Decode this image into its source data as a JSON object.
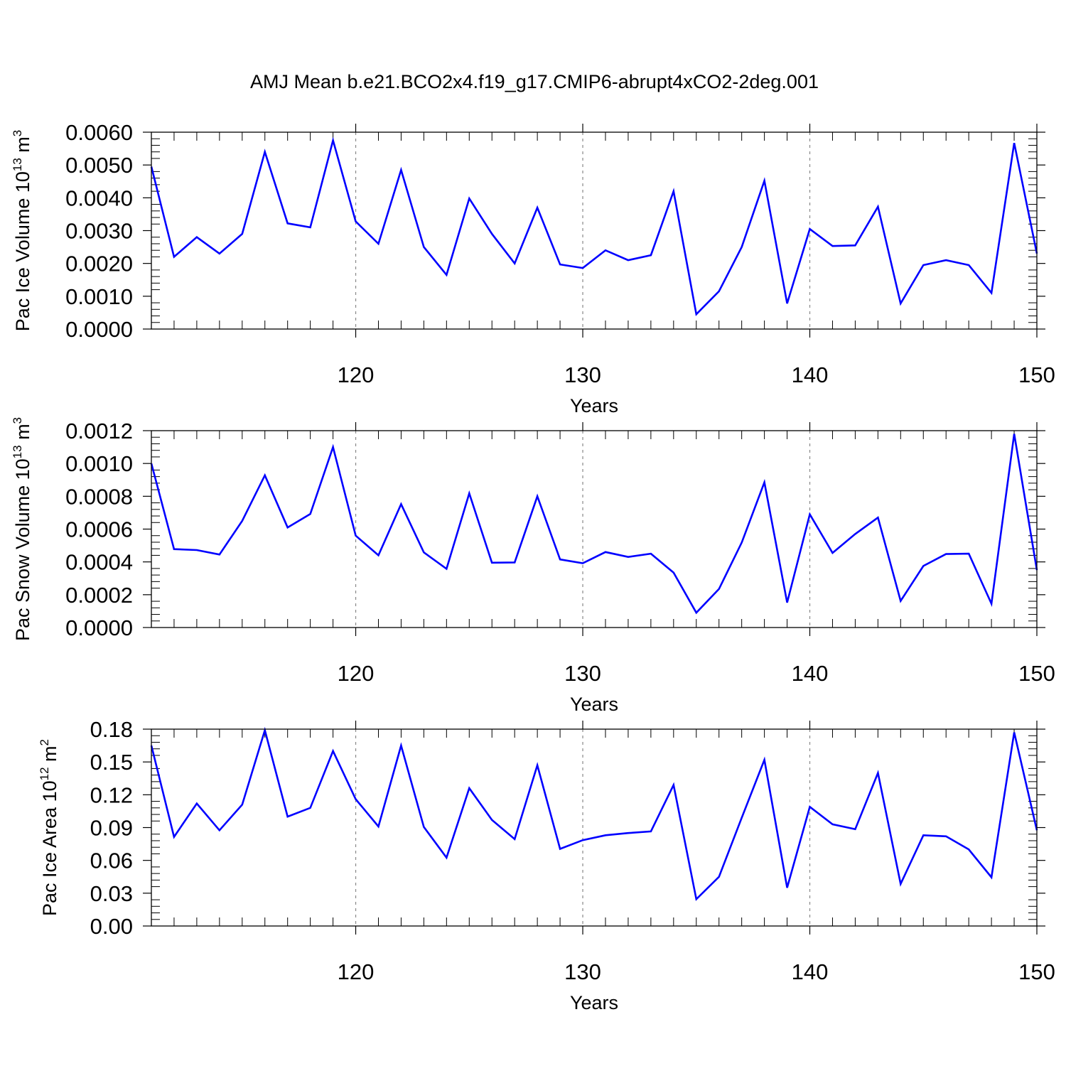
{
  "figure": {
    "title": "AMJ Mean b.e21.BCO2x4.f19_g17.CMIP6-abrupt4xCO2-2deg.001",
    "line_color": "#0000ff",
    "grid_color": "#888888"
  },
  "chart_data": [
    {
      "type": "line",
      "ylabel": "Pac Ice Volume",
      "ylabel_unit_base": "10",
      "ylabel_unit_exp": "13",
      "ylabel_unit_symbol": "m",
      "ylabel_unit_sym_exp": "3",
      "xlabel": "Years",
      "xlim": [
        111,
        150
      ],
      "ylim": [
        0,
        0.006
      ],
      "x_ticks": [
        120,
        130,
        140,
        150
      ],
      "x_tick_labels": [
        "120",
        "130",
        "140",
        "150"
      ],
      "y_ticks": [
        0,
        0.001,
        0.002,
        0.003,
        0.004,
        0.005,
        0.006
      ],
      "y_tick_labels": [
        "0.0000",
        "0.0010",
        "0.0020",
        "0.0030",
        "0.0040",
        "0.0050",
        "0.0060"
      ],
      "grid": "vertical dashed at x ticks",
      "x": [
        111,
        112,
        113,
        114,
        115,
        116,
        117,
        118,
        119,
        120,
        121,
        122,
        123,
        124,
        125,
        126,
        127,
        128,
        129,
        130,
        131,
        132,
        133,
        134,
        135,
        136,
        137,
        138,
        139,
        140,
        141,
        142,
        143,
        144,
        145,
        146,
        147,
        148,
        149,
        150
      ],
      "values": [
        0.00495,
        0.0022,
        0.0028,
        0.0023,
        0.0029,
        0.0054,
        0.00322,
        0.0031,
        0.00575,
        0.00328,
        0.0026,
        0.00485,
        0.0025,
        0.00165,
        0.00398,
        0.0029,
        0.002,
        0.0037,
        0.00197,
        0.00186,
        0.0024,
        0.0021,
        0.00225,
        0.0042,
        0.00045,
        0.00115,
        0.0025,
        0.00452,
        0.00078,
        0.00305,
        0.00253,
        0.00255,
        0.00373,
        0.00078,
        0.00195,
        0.0021,
        0.00195,
        0.0011,
        0.00567,
        0.0023
      ]
    },
    {
      "type": "line",
      "ylabel": "Pac Snow Volume",
      "ylabel_unit_base": "10",
      "ylabel_unit_exp": "13",
      "ylabel_unit_symbol": "m",
      "ylabel_unit_sym_exp": "3",
      "xlabel": "Years",
      "xlim": [
        111,
        150
      ],
      "ylim": [
        0,
        0.0012
      ],
      "x_ticks": [
        120,
        130,
        140,
        150
      ],
      "x_tick_labels": [
        "120",
        "130",
        "140",
        "150"
      ],
      "y_ticks": [
        0,
        0.0002,
        0.0004,
        0.0006,
        0.0008,
        0.001,
        0.0012
      ],
      "y_tick_labels": [
        "0.0000",
        "0.0002",
        "0.0004",
        "0.0006",
        "0.0008",
        "0.0010",
        "0.0012"
      ],
      "grid": "vertical dashed at x ticks",
      "x": [
        111,
        112,
        113,
        114,
        115,
        116,
        117,
        118,
        119,
        120,
        121,
        122,
        123,
        124,
        125,
        126,
        127,
        128,
        129,
        130,
        131,
        132,
        133,
        134,
        135,
        136,
        137,
        138,
        139,
        140,
        141,
        142,
        143,
        144,
        145,
        146,
        147,
        148,
        149,
        150
      ],
      "values": [
        0.001,
        0.000478,
        0.000472,
        0.000445,
        0.00065,
        0.000928,
        0.00061,
        0.000692,
        0.0011,
        0.00056,
        0.00044,
        0.000752,
        0.000458,
        0.000358,
        0.000818,
        0.000395,
        0.000397,
        0.0008,
        0.000415,
        0.000392,
        0.00046,
        0.00043,
        0.00045,
        0.000335,
        9e-05,
        0.000235,
        0.000518,
        0.000885,
        0.000152,
        0.00069,
        0.000455,
        0.00057,
        0.00067,
        0.000162,
        0.000375,
        0.000448,
        0.00045,
        0.000145,
        0.00118,
        0.00035
      ]
    },
    {
      "type": "line",
      "ylabel": "Pac Ice Area",
      "ylabel_unit_base": "10",
      "ylabel_unit_exp": "12",
      "ylabel_unit_symbol": "m",
      "ylabel_unit_sym_exp": "2",
      "xlabel": "Years",
      "xlim": [
        111,
        150
      ],
      "ylim": [
        0,
        0.18
      ],
      "x_ticks": [
        120,
        130,
        140,
        150
      ],
      "x_tick_labels": [
        "120",
        "130",
        "140",
        "150"
      ],
      "y_ticks": [
        0,
        0.03,
        0.06,
        0.09,
        0.12,
        0.15,
        0.18
      ],
      "y_tick_labels": [
        "0.00",
        "0.03",
        "0.06",
        "0.09",
        "0.12",
        "0.15",
        "0.18"
      ],
      "grid": "vertical dashed at x ticks",
      "x": [
        111,
        112,
        113,
        114,
        115,
        116,
        117,
        118,
        119,
        120,
        121,
        122,
        123,
        124,
        125,
        126,
        127,
        128,
        129,
        130,
        131,
        132,
        133,
        134,
        135,
        136,
        137,
        138,
        139,
        140,
        141,
        142,
        143,
        144,
        145,
        146,
        147,
        148,
        149,
        150
      ],
      "values": [
        0.165,
        0.0815,
        0.112,
        0.0875,
        0.111,
        0.179,
        0.1,
        0.108,
        0.16,
        0.116,
        0.091,
        0.165,
        0.0905,
        0.0625,
        0.126,
        0.097,
        0.0795,
        0.147,
        0.0705,
        0.0785,
        0.083,
        0.085,
        0.0865,
        0.129,
        0.0245,
        0.045,
        0.099,
        0.152,
        0.035,
        0.109,
        0.093,
        0.0885,
        0.14,
        0.0385,
        0.083,
        0.082,
        0.07,
        0.0445,
        0.177,
        0.0875
      ]
    }
  ]
}
